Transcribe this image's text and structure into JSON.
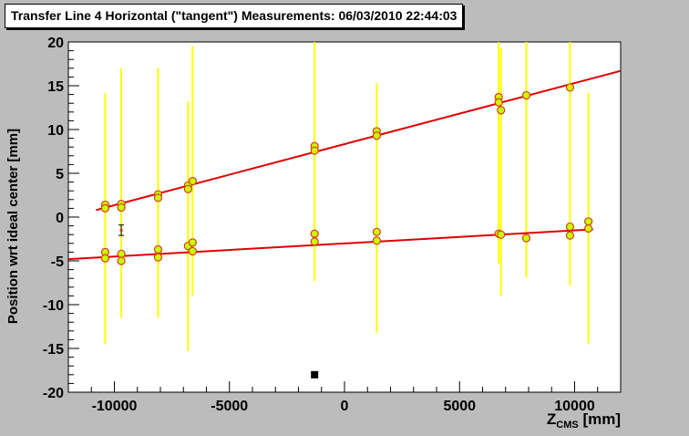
{
  "title": "Transfer Line 4 Horizontal (\"tangent\") Measurements: 06/03/2010 22:44:03",
  "chart_data": {
    "type": "scatter",
    "title": "Transfer Line 4 Horizontal (\"tangent\") Measurements: 06/03/2010 22:44:03",
    "ylabel": "Position wrt ideal center [mm]",
    "xlabel": {
      "base": "Z",
      "sub": "CMS",
      "unit": " [mm]"
    },
    "xlim": [
      -12000,
      12000
    ],
    "ylim": [
      -20,
      20
    ],
    "xticks": [
      -10000,
      -5000,
      0,
      5000,
      10000
    ],
    "yticks": [
      -20,
      -15,
      -10,
      -5,
      0,
      5,
      10,
      15,
      20
    ],
    "grid": false,
    "colors": {
      "fit": "#e00000",
      "error_bar": "#ffff00",
      "marker_fill": "#ccff00",
      "marker_edge": "#d43a1a",
      "frame_bg": "#ffffff",
      "canvas_bg": "#bcbcbc"
    },
    "fit_lines": [
      {
        "x": [
          -10800,
          12000
        ],
        "y": [
          0.8,
          16.7
        ]
      },
      {
        "x": [
          -12000,
          10800
        ],
        "y": [
          -4.8,
          -1.4
        ]
      }
    ],
    "points": [
      {
        "x": -10400,
        "y": 1.4,
        "ylo": -14.5,
        "yhi": 14.2
      },
      {
        "x": -10400,
        "y": 1.0
      },
      {
        "x": -10400,
        "y": -4.0
      },
      {
        "x": -10400,
        "y": -4.7
      },
      {
        "x": -9700,
        "y": 1.5,
        "ylo": -11.5,
        "yhi": 17.0
      },
      {
        "x": -9700,
        "y": 1.1
      },
      {
        "x": -9700,
        "y": -4.2
      },
      {
        "x": -9700,
        "y": -5.0
      },
      {
        "x": -8100,
        "y": 2.6,
        "ylo": -11.5,
        "yhi": 17.0
      },
      {
        "x": -8100,
        "y": 2.2
      },
      {
        "x": -8100,
        "y": -3.7
      },
      {
        "x": -8100,
        "y": -4.6
      },
      {
        "x": -6800,
        "y": 3.6,
        "ylo": -15.3,
        "yhi": 13.2
      },
      {
        "x": -6800,
        "y": 3.2
      },
      {
        "x": -6800,
        "y": -3.3
      },
      {
        "x": -6600,
        "y": 4.1,
        "ylo": -9.0,
        "yhi": 19.5
      },
      {
        "x": -6600,
        "y": -2.9
      },
      {
        "x": -6600,
        "y": -3.9
      },
      {
        "x": -1300,
        "y": 8.1,
        "ylo": -7.3,
        "yhi": 20.0
      },
      {
        "x": -1300,
        "y": 7.6
      },
      {
        "x": -1300,
        "y": -1.9
      },
      {
        "x": -1300,
        "y": -2.8
      },
      {
        "x": 1400,
        "y": 9.8,
        "ylo": -13.2,
        "yhi": 15.3
      },
      {
        "x": 1400,
        "y": 9.3
      },
      {
        "x": 1400,
        "y": -1.7
      },
      {
        "x": 1400,
        "y": -2.7
      },
      {
        "x": 6700,
        "y": 13.7,
        "ylo": -5.3,
        "yhi": 20.0
      },
      {
        "x": 6700,
        "y": 13.1
      },
      {
        "x": 6700,
        "y": -1.9
      },
      {
        "x": 6800,
        "y": 12.2,
        "ylo": -9.0,
        "yhi": 19.3
      },
      {
        "x": 6800,
        "y": -2.0
      },
      {
        "x": 7900,
        "y": 13.9,
        "ylo": -6.9,
        "yhi": 20.0
      },
      {
        "x": 7900,
        "y": -2.4
      },
      {
        "x": 9800,
        "y": 14.8,
        "ylo": -7.8,
        "yhi": 20.0
      },
      {
        "x": 9800,
        "y": -1.1
      },
      {
        "x": 9800,
        "y": -2.1
      },
      {
        "x": 10600,
        "y": -0.5,
        "ylo": -14.5,
        "yhi": 14.2
      },
      {
        "x": 10600,
        "y": -1.3
      }
    ],
    "special_points": [
      {
        "x": -9700,
        "y": -1.5,
        "ylo": -2.1,
        "yhi": -0.9,
        "marker": "bar"
      },
      {
        "x": -1300,
        "y": -18.0,
        "marker": "square"
      }
    ]
  }
}
